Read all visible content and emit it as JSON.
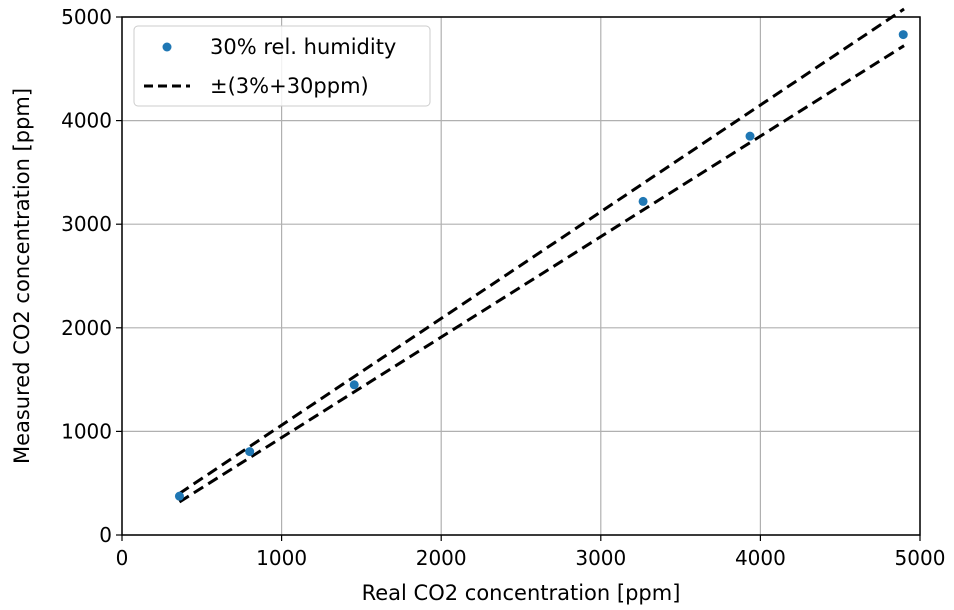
{
  "chart_data": {
    "type": "scatter",
    "xlabel": "Real CO2 concentration [ppm]",
    "ylabel": "Measured CO2 concentration [ppm]",
    "xlim": [
      0,
      5000
    ],
    "ylim": [
      0,
      5000
    ],
    "xticks": [
      0,
      1000,
      2000,
      3000,
      4000,
      5000
    ],
    "yticks": [
      0,
      1000,
      2000,
      3000,
      4000,
      5000
    ],
    "grid": true,
    "legend_position": "top-left",
    "series": [
      {
        "name": "30% rel. humidity",
        "kind": "points",
        "color": "#1f77b4",
        "x": [
          360,
          800,
          1455,
          3265,
          3935,
          4895
        ],
        "y": [
          375,
          805,
          1450,
          3220,
          3850,
          4830
        ]
      }
    ],
    "tolerance_band": {
      "name": "±(3%+30ppm)",
      "kind": "dashed-lines",
      "color": "#000000",
      "x_range": [
        360,
        4900
      ]
    }
  }
}
